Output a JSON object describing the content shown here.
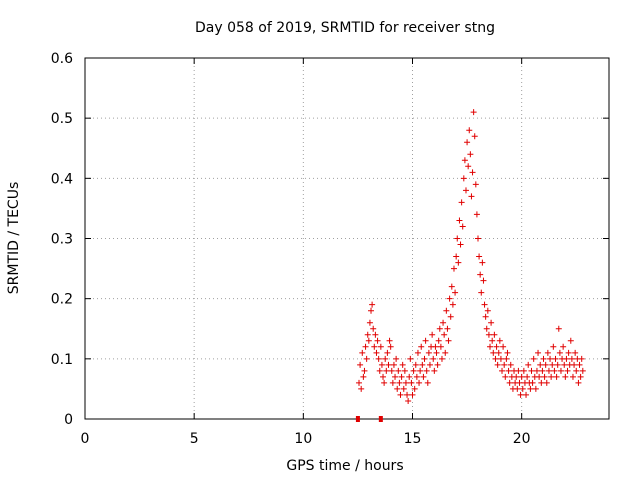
{
  "chart_data": {
    "type": "scatter",
    "title": "Day 058 of 2019, SRMTID for receiver stng",
    "xlabel": "GPS time / hours",
    "ylabel": "SRMTID / TECUs",
    "xlim": [
      0,
      24
    ],
    "ylim": [
      0,
      0.6
    ],
    "xticks": [
      "0",
      "5",
      "10",
      "15",
      "20"
    ],
    "xtick_values": [
      0,
      5,
      10,
      15,
      20
    ],
    "yticks": [
      "0",
      "0.1",
      "0.2",
      "0.3",
      "0.4",
      "0.5",
      "0.6"
    ],
    "ytick_values": [
      0,
      0.1,
      0.2,
      0.3,
      0.4,
      0.5,
      0.6
    ],
    "grid": true,
    "marker": "plus",
    "color": "#e00000",
    "gap_markers_x": [
      12.5,
      13.55
    ],
    "series": [
      {
        "name": "SRMTID",
        "points": [
          [
            12.55,
            0.06
          ],
          [
            12.6,
            0.09
          ],
          [
            12.65,
            0.05
          ],
          [
            12.7,
            0.11
          ],
          [
            12.75,
            0.07
          ],
          [
            12.8,
            0.08
          ],
          [
            12.85,
            0.12
          ],
          [
            12.9,
            0.1
          ],
          [
            12.95,
            0.14
          ],
          [
            13.0,
            0.13
          ],
          [
            13.05,
            0.16
          ],
          [
            13.1,
            0.18
          ],
          [
            13.15,
            0.19
          ],
          [
            13.2,
            0.15
          ],
          [
            13.25,
            0.12
          ],
          [
            13.3,
            0.14
          ],
          [
            13.35,
            0.11
          ],
          [
            13.4,
            0.13
          ],
          [
            13.45,
            0.1
          ],
          [
            13.5,
            0.08
          ],
          [
            13.55,
            0.12
          ],
          [
            13.6,
            0.09
          ],
          [
            13.65,
            0.07
          ],
          [
            13.7,
            0.06
          ],
          [
            13.75,
            0.1
          ],
          [
            13.8,
            0.08
          ],
          [
            13.85,
            0.11
          ],
          [
            13.9,
            0.09
          ],
          [
            13.95,
            0.13
          ],
          [
            14.0,
            0.12
          ],
          [
            14.05,
            0.08
          ],
          [
            14.1,
            0.06
          ],
          [
            14.15,
            0.09
          ],
          [
            14.2,
            0.07
          ],
          [
            14.25,
            0.1
          ],
          [
            14.3,
            0.05
          ],
          [
            14.35,
            0.08
          ],
          [
            14.4,
            0.06
          ],
          [
            14.45,
            0.04
          ],
          [
            14.5,
            0.07
          ],
          [
            14.55,
            0.09
          ],
          [
            14.6,
            0.05
          ],
          [
            14.65,
            0.08
          ],
          [
            14.7,
            0.06
          ],
          [
            14.75,
            0.04
          ],
          [
            14.8,
            0.03
          ],
          [
            14.85,
            0.07
          ],
          [
            14.9,
            0.1
          ],
          [
            14.95,
            0.06
          ],
          [
            15.0,
            0.04
          ],
          [
            15.05,
            0.08
          ],
          [
            15.1,
            0.05
          ],
          [
            15.15,
            0.09
          ],
          [
            15.2,
            0.07
          ],
          [
            15.25,
            0.11
          ],
          [
            15.3,
            0.06
          ],
          [
            15.35,
            0.08
          ],
          [
            15.4,
            0.12
          ],
          [
            15.45,
            0.09
          ],
          [
            15.5,
            0.07
          ],
          [
            15.55,
            0.1
          ],
          [
            15.6,
            0.13
          ],
          [
            15.65,
            0.08
          ],
          [
            15.7,
            0.06
          ],
          [
            15.75,
            0.11
          ],
          [
            15.8,
            0.09
          ],
          [
            15.85,
            0.12
          ],
          [
            15.9,
            0.14
          ],
          [
            15.95,
            0.1
          ],
          [
            16.0,
            0.08
          ],
          [
            16.05,
            0.12
          ],
          [
            16.1,
            0.11
          ],
          [
            16.15,
            0.09
          ],
          [
            16.2,
            0.13
          ],
          [
            16.25,
            0.15
          ],
          [
            16.3,
            0.12
          ],
          [
            16.35,
            0.1
          ],
          [
            16.4,
            0.16
          ],
          [
            16.45,
            0.14
          ],
          [
            16.5,
            0.11
          ],
          [
            16.55,
            0.18
          ],
          [
            16.6,
            0.15
          ],
          [
            16.65,
            0.13
          ],
          [
            16.7,
            0.2
          ],
          [
            16.75,
            0.17
          ],
          [
            16.8,
            0.22
          ],
          [
            16.85,
            0.19
          ],
          [
            16.9,
            0.25
          ],
          [
            16.95,
            0.21
          ],
          [
            17.0,
            0.27
          ],
          [
            17.05,
            0.3
          ],
          [
            17.1,
            0.26
          ],
          [
            17.15,
            0.33
          ],
          [
            17.2,
            0.29
          ],
          [
            17.25,
            0.36
          ],
          [
            17.3,
            0.32
          ],
          [
            17.35,
            0.4
          ],
          [
            17.4,
            0.43
          ],
          [
            17.45,
            0.38
          ],
          [
            17.5,
            0.46
          ],
          [
            17.55,
            0.42
          ],
          [
            17.6,
            0.48
          ],
          [
            17.65,
            0.44
          ],
          [
            17.7,
            0.37
          ],
          [
            17.75,
            0.41
          ],
          [
            17.8,
            0.51
          ],
          [
            17.85,
            0.47
          ],
          [
            17.9,
            0.39
          ],
          [
            17.95,
            0.34
          ],
          [
            18.0,
            0.3
          ],
          [
            18.05,
            0.27
          ],
          [
            18.1,
            0.24
          ],
          [
            18.15,
            0.21
          ],
          [
            18.2,
            0.26
          ],
          [
            18.25,
            0.23
          ],
          [
            18.3,
            0.19
          ],
          [
            18.35,
            0.17
          ],
          [
            18.4,
            0.15
          ],
          [
            18.45,
            0.18
          ],
          [
            18.5,
            0.14
          ],
          [
            18.55,
            0.12
          ],
          [
            18.6,
            0.16
          ],
          [
            18.65,
            0.13
          ],
          [
            18.7,
            0.11
          ],
          [
            18.75,
            0.14
          ],
          [
            18.8,
            0.1
          ],
          [
            18.85,
            0.12
          ],
          [
            18.9,
            0.09
          ],
          [
            18.95,
            0.11
          ],
          [
            19.0,
            0.13
          ],
          [
            19.05,
            0.1
          ],
          [
            19.1,
            0.08
          ],
          [
            19.15,
            0.12
          ],
          [
            19.2,
            0.09
          ],
          [
            19.25,
            0.07
          ],
          [
            19.3,
            0.1
          ],
          [
            19.35,
            0.11
          ],
          [
            19.4,
            0.08
          ],
          [
            19.45,
            0.06
          ],
          [
            19.5,
            0.09
          ],
          [
            19.55,
            0.07
          ],
          [
            19.6,
            0.05
          ],
          [
            19.65,
            0.08
          ],
          [
            19.7,
            0.06
          ],
          [
            19.75,
            0.07
          ],
          [
            19.8,
            0.05
          ],
          [
            19.85,
            0.08
          ],
          [
            19.9,
            0.06
          ],
          [
            19.95,
            0.04
          ],
          [
            20.0,
            0.07
          ],
          [
            20.05,
            0.05
          ],
          [
            20.1,
            0.08
          ],
          [
            20.15,
            0.06
          ],
          [
            20.2,
            0.04
          ],
          [
            20.25,
            0.07
          ],
          [
            20.3,
            0.09
          ],
          [
            20.35,
            0.06
          ],
          [
            20.4,
            0.05
          ],
          [
            20.45,
            0.08
          ],
          [
            20.5,
            0.06
          ],
          [
            20.55,
            0.1
          ],
          [
            20.6,
            0.07
          ],
          [
            20.65,
            0.05
          ],
          [
            20.7,
            0.08
          ],
          [
            20.75,
            0.11
          ],
          [
            20.8,
            0.07
          ],
          [
            20.85,
            0.09
          ],
          [
            20.9,
            0.06
          ],
          [
            20.95,
            0.08
          ],
          [
            21.0,
            0.1
          ],
          [
            21.05,
            0.07
          ],
          [
            21.1,
            0.09
          ],
          [
            21.15,
            0.06
          ],
          [
            21.2,
            0.11
          ],
          [
            21.25,
            0.08
          ],
          [
            21.3,
            0.1
          ],
          [
            21.35,
            0.07
          ],
          [
            21.4,
            0.09
          ],
          [
            21.45,
            0.12
          ],
          [
            21.5,
            0.08
          ],
          [
            21.55,
            0.1
          ],
          [
            21.6,
            0.07
          ],
          [
            21.65,
            0.09
          ],
          [
            21.7,
            0.15
          ],
          [
            21.75,
            0.11
          ],
          [
            21.8,
            0.08
          ],
          [
            21.85,
            0.1
          ],
          [
            21.9,
            0.12
          ],
          [
            21.95,
            0.09
          ],
          [
            22.0,
            0.07
          ],
          [
            22.05,
            0.1
          ],
          [
            22.1,
            0.08
          ],
          [
            22.15,
            0.11
          ],
          [
            22.2,
            0.09
          ],
          [
            22.25,
            0.13
          ],
          [
            22.3,
            0.1
          ],
          [
            22.35,
            0.07
          ],
          [
            22.4,
            0.09
          ],
          [
            22.45,
            0.11
          ],
          [
            22.5,
            0.08
          ],
          [
            22.55,
            0.1
          ],
          [
            22.6,
            0.06
          ],
          [
            22.65,
            0.09
          ],
          [
            22.7,
            0.07
          ],
          [
            22.75,
            0.1
          ],
          [
            22.8,
            0.08
          ]
        ]
      }
    ]
  }
}
